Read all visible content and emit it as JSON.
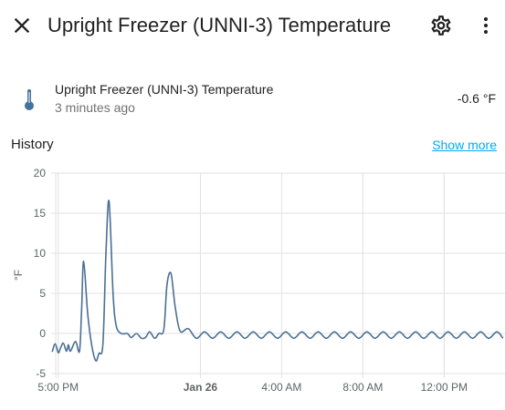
{
  "dialog": {
    "title": "Upright Freezer (UNNI-3) Temperature"
  },
  "icons": {
    "close": "close-icon",
    "settings": "gear-icon",
    "more": "more-vertical-icon",
    "entity": "thermometer-icon"
  },
  "entity": {
    "name": "Upright Freezer (UNNI-3) Temperature",
    "last_changed": "3 minutes ago",
    "value": "-0.6 °F"
  },
  "history": {
    "title": "History",
    "show_more": "Show more"
  },
  "colors": {
    "line": "#4a6f94",
    "link": "#03a9f4",
    "grid": "#e0e0e0"
  },
  "chart_data": {
    "type": "line",
    "title": "",
    "xlabel": "",
    "ylabel": "°F",
    "ylim": [
      -5,
      20
    ],
    "yticks": [
      -5,
      0,
      5,
      10,
      15,
      20
    ],
    "x_ticks": [
      {
        "label": "5:00 PM",
        "hour": 17,
        "bold": false
      },
      {
        "label": "Jan 26",
        "hour": 24,
        "bold": true
      },
      {
        "label": "4:00 AM",
        "hour": 28,
        "bold": false
      },
      {
        "label": "8:00 AM",
        "hour": 32,
        "bold": false
      },
      {
        "label": "12:00 PM",
        "hour": 36,
        "bold": false
      }
    ],
    "xlim": [
      16.65,
      39.0
    ],
    "grid": true,
    "legend": "none",
    "series": [
      {
        "x": [
          16.7,
          16.85,
          17.0,
          17.1,
          17.25,
          17.4,
          17.5,
          17.6,
          17.85,
          18.05,
          18.15,
          18.25,
          18.45,
          18.65,
          18.85,
          19.0,
          19.2,
          19.35,
          19.5,
          19.7,
          19.85,
          20.1,
          20.4,
          20.6,
          20.85,
          21.1,
          21.3,
          21.5,
          21.75,
          21.95,
          22.2,
          22.35,
          22.55,
          22.75,
          23.0,
          23.4,
          23.8,
          24.2,
          24.6,
          25.0,
          25.4,
          25.8,
          26.2,
          26.6,
          27.0,
          27.4,
          27.8,
          28.2,
          28.6,
          29.0,
          29.4,
          29.8,
          30.2,
          30.6,
          31.0,
          31.4,
          31.8,
          32.2,
          32.6,
          33.0,
          33.4,
          33.8,
          34.2,
          34.6,
          35.0,
          35.4,
          35.8,
          36.2,
          36.6,
          37.0,
          37.4,
          37.8,
          38.2,
          38.6,
          38.9
        ],
        "values": [
          -2.3,
          -1.3,
          -2.4,
          -1.9,
          -1.2,
          -2.2,
          -1.4,
          -2.2,
          -1.0,
          -2.2,
          3.0,
          9.0,
          2.5,
          -1.5,
          -3.4,
          -2.5,
          -1.3,
          10.0,
          16.5,
          5.0,
          1.0,
          0.0,
          0.0,
          -0.5,
          0.0,
          -0.6,
          -0.5,
          0.2,
          -0.6,
          0.0,
          0.5,
          6.0,
          7.5,
          3.5,
          0.3,
          0.6,
          -0.6,
          0.2,
          -0.6,
          0.2,
          -0.6,
          0.2,
          -0.6,
          0.2,
          -0.6,
          0.2,
          -0.6,
          0.2,
          -0.6,
          0.2,
          -0.6,
          0.2,
          -0.6,
          0.2,
          -0.6,
          0.2,
          -0.6,
          0.2,
          -0.6,
          0.2,
          -0.6,
          0.2,
          -0.6,
          0.2,
          -0.6,
          0.2,
          -0.6,
          0.2,
          -0.6,
          0.2,
          -0.6,
          0.2,
          -0.6,
          0.2,
          -0.6
        ]
      }
    ]
  }
}
